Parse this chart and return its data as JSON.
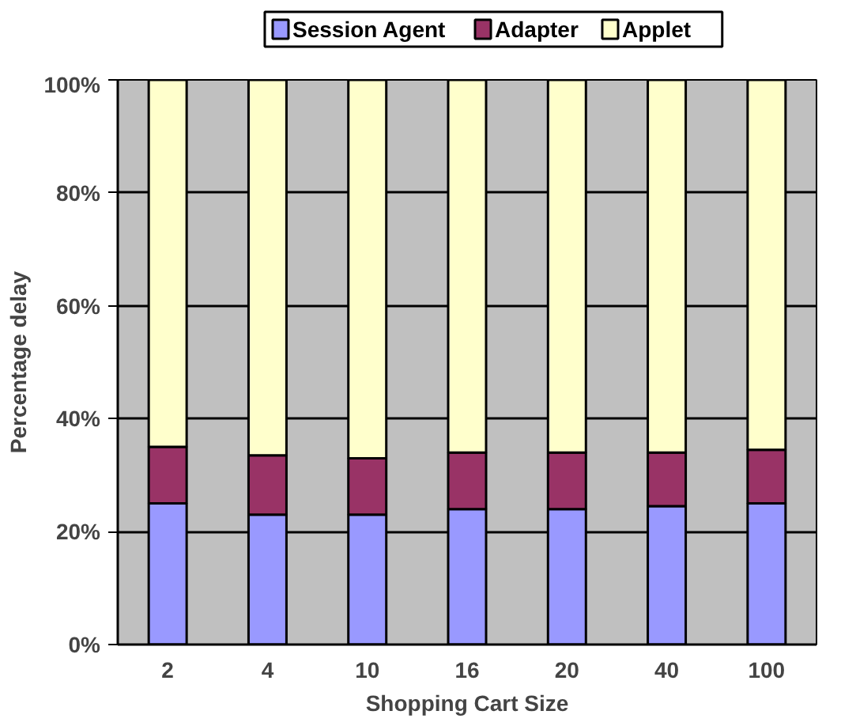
{
  "chart_data": {
    "type": "bar",
    "stacked": true,
    "xlabel": "Shopping Cart Size",
    "ylabel": "Percentage delay",
    "categories": [
      "2",
      "4",
      "10",
      "16",
      "20",
      "40",
      "100"
    ],
    "series": [
      {
        "name": "Session Agent",
        "color": "#9999ff",
        "values": [
          25,
          23,
          23,
          24,
          24,
          24.5,
          25
        ]
      },
      {
        "name": "Adapter",
        "color": "#993366",
        "values": [
          10,
          10.5,
          10,
          10,
          10,
          9.5,
          9.5
        ]
      },
      {
        "name": "Applet",
        "color": "#ffffcc",
        "values": [
          65,
          66.5,
          67,
          66,
          66,
          66,
          65.5
        ]
      }
    ],
    "ylim": [
      0,
      100
    ],
    "yticks": [
      {
        "value": 0,
        "label": "0%"
      },
      {
        "value": 20,
        "label": "20%"
      },
      {
        "value": 40,
        "label": "40%"
      },
      {
        "value": 60,
        "label": "60%"
      },
      {
        "value": 80,
        "label": "80%"
      },
      {
        "value": 100,
        "label": "100%"
      }
    ],
    "grid": "y",
    "legend": "top"
  }
}
